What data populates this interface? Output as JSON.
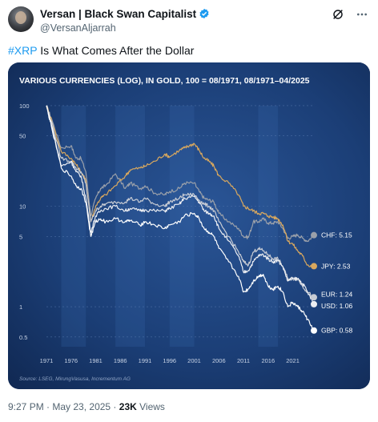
{
  "author": {
    "name": "Versan | Black Swan Capitalist",
    "handle": "@VersanAljarrah"
  },
  "tweet": {
    "hashtag": "#XRP",
    "text": " Is What Comes After the Dollar"
  },
  "meta": {
    "time": "9:27 PM",
    "sep1": " · ",
    "date": "May 23, 2025",
    "sep2": " · ",
    "views_count": "23K",
    "views_label": " Views"
  },
  "icons": [
    "verified-badge-icon",
    "grok-icon",
    "more-icon"
  ],
  "chart_data": {
    "type": "line",
    "title": "VARIOUS CURRENCIES (LOG), IN GOLD, 100 = 08/1971, 08/1971–04/2025",
    "source": "Source: LSEG, MirungVasusa, Incrementum AG",
    "y_scale": "log",
    "ylim": [
      0.4,
      120
    ],
    "y_ticks": [
      {
        "v": 100,
        "l": "100"
      },
      {
        "v": 50,
        "l": "50"
      },
      {
        "v": 10,
        "l": "10"
      },
      {
        "v": 5,
        "l": "5"
      },
      {
        "v": 1,
        "l": "1"
      },
      {
        "v": 0.5,
        "l": "0.5"
      }
    ],
    "x_ticks": [
      "1971",
      "1976",
      "1981",
      "1986",
      "1991",
      "1996",
      "2001",
      "2006",
      "2011",
      "2016",
      "2021"
    ],
    "xlim": [
      1971,
      2025.3
    ],
    "series": [
      {
        "name": "CHF",
        "end_label": "CHF: 5.15",
        "color": "#9aa0aa",
        "points": [
          [
            1971,
            100
          ],
          [
            1972,
            75
          ],
          [
            1974,
            38
          ],
          [
            1976,
            40
          ],
          [
            1977,
            30
          ],
          [
            1978,
            30
          ],
          [
            1979,
            22
          ],
          [
            1980,
            8
          ],
          [
            1981,
            12
          ],
          [
            1982,
            15
          ],
          [
            1983,
            16
          ],
          [
            1985,
            21
          ],
          [
            1987,
            15
          ],
          [
            1988,
            17
          ],
          [
            1990,
            15
          ],
          [
            1991,
            16
          ],
          [
            1993,
            13.5
          ],
          [
            1995,
            13
          ],
          [
            1996,
            14
          ],
          [
            1998,
            15
          ],
          [
            1999,
            17
          ],
          [
            2001,
            17
          ],
          [
            2002,
            14
          ],
          [
            2003,
            12
          ],
          [
            2004,
            11.5
          ],
          [
            2005,
            11
          ],
          [
            2006,
            8.5
          ],
          [
            2008,
            7
          ],
          [
            2010,
            6
          ],
          [
            2011,
            5
          ],
          [
            2012,
            4.9
          ],
          [
            2013,
            7
          ],
          [
            2014,
            7
          ],
          [
            2015,
            7.5
          ],
          [
            2016,
            6.8
          ],
          [
            2017,
            6.8
          ],
          [
            2018,
            7
          ],
          [
            2019,
            6
          ],
          [
            2020,
            4.8
          ],
          [
            2021,
            5
          ],
          [
            2022,
            5.2
          ],
          [
            2023,
            4.8
          ],
          [
            2024,
            4.5
          ],
          [
            2025.3,
            5.15
          ]
        ]
      },
      {
        "name": "JPY",
        "end_label": "JPY: 2.53",
        "color": "#d9a85e",
        "points": [
          [
            1971,
            100
          ],
          [
            1972,
            72
          ],
          [
            1974,
            35
          ],
          [
            1976,
            30
          ],
          [
            1977,
            26
          ],
          [
            1978,
            22
          ],
          [
            1979,
            18
          ],
          [
            1980,
            7
          ],
          [
            1981,
            10
          ],
          [
            1982,
            12
          ],
          [
            1983,
            13
          ],
          [
            1985,
            16
          ],
          [
            1987,
            20
          ],
          [
            1988,
            23
          ],
          [
            1990,
            24
          ],
          [
            1991,
            25
          ],
          [
            1993,
            28
          ],
          [
            1995,
            33
          ],
          [
            1996,
            31
          ],
          [
            1998,
            36
          ],
          [
            1999,
            38
          ],
          [
            2000,
            40
          ],
          [
            2001,
            42
          ],
          [
            2002,
            36
          ],
          [
            2003,
            30
          ],
          [
            2004,
            28
          ],
          [
            2005,
            25
          ],
          [
            2006,
            20
          ],
          [
            2008,
            17
          ],
          [
            2010,
            13
          ],
          [
            2011,
            10
          ],
          [
            2012,
            9.5
          ],
          [
            2013,
            9
          ],
          [
            2014,
            8.5
          ],
          [
            2015,
            8.5
          ],
          [
            2016,
            8
          ],
          [
            2017,
            7.8
          ],
          [
            2018,
            7.5
          ],
          [
            2019,
            6.5
          ],
          [
            2020,
            4.5
          ],
          [
            2021,
            4.2
          ],
          [
            2022,
            3.6
          ],
          [
            2023,
            3.2
          ],
          [
            2024,
            2.6
          ],
          [
            2025.3,
            2.53
          ]
        ]
      },
      {
        "name": "EUR",
        "end_label": "EUR: 1.24",
        "color": "#c8ccd4",
        "points": [
          [
            1971,
            100
          ],
          [
            1972,
            70
          ],
          [
            1974,
            30
          ],
          [
            1976,
            28
          ],
          [
            1977,
            24
          ],
          [
            1978,
            22
          ],
          [
            1979,
            17
          ],
          [
            1980,
            7
          ],
          [
            1981,
            9
          ],
          [
            1982,
            10
          ],
          [
            1983,
            10.5
          ],
          [
            1985,
            11
          ],
          [
            1987,
            11
          ],
          [
            1988,
            12
          ],
          [
            1990,
            11
          ],
          [
            1991,
            12
          ],
          [
            1993,
            10.5
          ],
          [
            1995,
            10
          ],
          [
            1996,
            11
          ],
          [
            1998,
            12
          ],
          [
            1999,
            13
          ],
          [
            2001,
            13
          ],
          [
            2002,
            11.5
          ],
          [
            2003,
            10.5
          ],
          [
            2004,
            10
          ],
          [
            2005,
            9
          ],
          [
            2006,
            7
          ],
          [
            2008,
            5
          ],
          [
            2010,
            3.5
          ],
          [
            2011,
            2.8
          ],
          [
            2012,
            2.6
          ],
          [
            2013,
            3.5
          ],
          [
            2014,
            3.8
          ],
          [
            2015,
            3.6
          ],
          [
            2016,
            3.3
          ],
          [
            2017,
            3
          ],
          [
            2018,
            3
          ],
          [
            2019,
            2.5
          ],
          [
            2020,
            1.9
          ],
          [
            2021,
            1.9
          ],
          [
            2022,
            1.9
          ],
          [
            2023,
            1.6
          ],
          [
            2024,
            1.4
          ],
          [
            2025.3,
            1.24
          ]
        ]
      },
      {
        "name": "USD",
        "end_label": "USD: 1.06",
        "color": "#eceef2",
        "points": [
          [
            1971,
            100
          ],
          [
            1972,
            65
          ],
          [
            1974,
            25
          ],
          [
            1976,
            28
          ],
          [
            1977,
            22
          ],
          [
            1978,
            20
          ],
          [
            1979,
            12
          ],
          [
            1980,
            5.5
          ],
          [
            1981,
            8
          ],
          [
            1982,
            9
          ],
          [
            1983,
            9.5
          ],
          [
            1985,
            10
          ],
          [
            1987,
            9
          ],
          [
            1988,
            9.5
          ],
          [
            1990,
            9
          ],
          [
            1991,
            9.2
          ],
          [
            1993,
            9
          ],
          [
            1995,
            9
          ],
          [
            1996,
            9.5
          ],
          [
            1998,
            10.5
          ],
          [
            1999,
            12
          ],
          [
            2001,
            12.5
          ],
          [
            2002,
            11
          ],
          [
            2003,
            9
          ],
          [
            2004,
            8.5
          ],
          [
            2005,
            8
          ],
          [
            2006,
            6
          ],
          [
            2008,
            4.5
          ],
          [
            2010,
            3.2
          ],
          [
            2011,
            2.2
          ],
          [
            2012,
            2.3
          ],
          [
            2013,
            2.8
          ],
          [
            2014,
            3.2
          ],
          [
            2015,
            3.3
          ],
          [
            2016,
            3
          ],
          [
            2017,
            2.8
          ],
          [
            2018,
            2.9
          ],
          [
            2019,
            2.5
          ],
          [
            2020,
            1.8
          ],
          [
            2021,
            1.9
          ],
          [
            2022,
            1.9
          ],
          [
            2023,
            1.7
          ],
          [
            2024,
            1.4
          ],
          [
            2025.3,
            1.06
          ]
        ]
      },
      {
        "name": "GBP",
        "end_label": "GBP: 0.58",
        "color": "#ffffff",
        "points": [
          [
            1971,
            100
          ],
          [
            1972,
            62
          ],
          [
            1974,
            24
          ],
          [
            1976,
            20
          ],
          [
            1977,
            16
          ],
          [
            1978,
            15
          ],
          [
            1979,
            11
          ],
          [
            1980,
            5
          ],
          [
            1981,
            7
          ],
          [
            1982,
            7.5
          ],
          [
            1983,
            7
          ],
          [
            1985,
            7.5
          ],
          [
            1987,
            7
          ],
          [
            1988,
            7.2
          ],
          [
            1990,
            6.5
          ],
          [
            1991,
            7
          ],
          [
            1993,
            6.5
          ],
          [
            1995,
            6
          ],
          [
            1996,
            6.5
          ],
          [
            1998,
            7
          ],
          [
            1999,
            8
          ],
          [
            2001,
            8.5
          ],
          [
            2002,
            7.5
          ],
          [
            2003,
            6
          ],
          [
            2004,
            5.5
          ],
          [
            2005,
            5
          ],
          [
            2006,
            3.8
          ],
          [
            2008,
            2.8
          ],
          [
            2010,
            2
          ],
          [
            2011,
            1.4
          ],
          [
            2012,
            1.5
          ],
          [
            2013,
            1.8
          ],
          [
            2014,
            2
          ],
          [
            2015,
            2.1
          ],
          [
            2016,
            1.6
          ],
          [
            2017,
            1.5
          ],
          [
            2018,
            1.6
          ],
          [
            2019,
            1.4
          ],
          [
            2020,
            1
          ],
          [
            2021,
            1.1
          ],
          [
            2022,
            1
          ],
          [
            2023,
            0.9
          ],
          [
            2024,
            0.75
          ],
          [
            2025.3,
            0.58
          ]
        ]
      }
    ]
  }
}
